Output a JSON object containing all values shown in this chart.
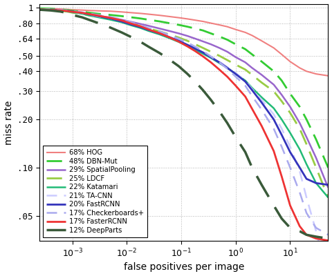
{
  "title": "",
  "xlabel": "false positives per image",
  "ylabel": "miss rate",
  "xlim": [
    0.00025,
    50
  ],
  "ylim": [
    0.035,
    1.05
  ],
  "yticks": [
    0.05,
    0.1,
    0.2,
    0.3,
    0.4,
    0.5,
    0.64,
    0.8,
    1.0
  ],
  "ytick_labels": [
    ".05",
    ".10",
    ".20",
    ".30",
    ".40",
    ".50",
    ".64",
    ".80",
    "1"
  ],
  "xticks": [
    0.001,
    0.01,
    0.1,
    1.0,
    10.0
  ],
  "xtick_labels": [
    "10⁻³",
    "10⁻²",
    "10⁻¹",
    "10⁰",
    "10¹"
  ],
  "background_color": "#ffffff",
  "grid_color": "#aaaaaa",
  "curves": [
    {
      "label": "68% HOG",
      "color": "#f08080",
      "linestyle": "-",
      "linewidth": 1.5,
      "x": [
        0.00025,
        0.0004,
        0.0006,
        0.0008,
        0.001,
        0.0015,
        0.002,
        0.003,
        0.005,
        0.008,
        0.012,
        0.018,
        0.025,
        0.04,
        0.06,
        0.09,
        0.13,
        0.18,
        0.25,
        0.35,
        0.5,
        0.7,
        1.0,
        1.5,
        2.0,
        3.0,
        5.0,
        7.0,
        10.0,
        15.0,
        20.0,
        30.0,
        50.0
      ],
      "y": [
        0.99,
        0.985,
        0.98,
        0.975,
        0.97,
        0.965,
        0.96,
        0.955,
        0.95,
        0.94,
        0.93,
        0.92,
        0.91,
        0.895,
        0.88,
        0.865,
        0.85,
        0.835,
        0.82,
        0.8,
        0.78,
        0.76,
        0.73,
        0.7,
        0.67,
        0.62,
        0.56,
        0.51,
        0.46,
        0.42,
        0.4,
        0.385,
        0.375
      ]
    },
    {
      "label": "48% DBN-Mut",
      "color": "#33cc33",
      "linestyle": "--",
      "linewidth": 2.0,
      "dash_pattern": [
        8,
        4
      ],
      "x": [
        0.00025,
        0.0004,
        0.0006,
        0.0008,
        0.001,
        0.0015,
        0.002,
        0.003,
        0.005,
        0.008,
        0.012,
        0.018,
        0.025,
        0.04,
        0.06,
        0.09,
        0.13,
        0.18,
        0.25,
        0.35,
        0.5,
        0.7,
        1.0,
        1.5,
        2.0,
        3.0,
        5.0,
        7.0,
        10.0,
        15.0,
        20.0,
        30.0,
        50.0
      ],
      "y": [
        0.99,
        0.985,
        0.975,
        0.965,
        0.955,
        0.945,
        0.93,
        0.915,
        0.9,
        0.885,
        0.87,
        0.855,
        0.84,
        0.82,
        0.8,
        0.78,
        0.76,
        0.74,
        0.72,
        0.69,
        0.66,
        0.63,
        0.59,
        0.55,
        0.51,
        0.46,
        0.4,
        0.35,
        0.29,
        0.24,
        0.2,
        0.15,
        0.1
      ]
    },
    {
      "label": "29% SpatialPooling",
      "color": "#9966cc",
      "linestyle": "-",
      "linewidth": 1.8,
      "x": [
        0.00025,
        0.0004,
        0.0006,
        0.0008,
        0.001,
        0.0015,
        0.002,
        0.003,
        0.005,
        0.008,
        0.012,
        0.018,
        0.025,
        0.04,
        0.06,
        0.09,
        0.13,
        0.18,
        0.25,
        0.35,
        0.5,
        0.7,
        1.0,
        1.5,
        2.0,
        3.0,
        5.0,
        7.0,
        10.0,
        15.0,
        20.0,
        30.0,
        50.0
      ],
      "y": [
        0.98,
        0.975,
        0.965,
        0.955,
        0.94,
        0.925,
        0.91,
        0.89,
        0.865,
        0.84,
        0.815,
        0.79,
        0.77,
        0.74,
        0.715,
        0.69,
        0.665,
        0.64,
        0.615,
        0.59,
        0.56,
        0.53,
        0.49,
        0.455,
        0.42,
        0.38,
        0.33,
        0.285,
        0.24,
        0.19,
        0.155,
        0.115,
        0.075
      ]
    },
    {
      "label": "25% LDCF",
      "color": "#99cc44",
      "linestyle": "--",
      "linewidth": 2.0,
      "dash_pattern": [
        8,
        4
      ],
      "x": [
        0.00025,
        0.0004,
        0.0006,
        0.0008,
        0.001,
        0.0015,
        0.002,
        0.003,
        0.005,
        0.008,
        0.012,
        0.018,
        0.025,
        0.04,
        0.06,
        0.09,
        0.13,
        0.18,
        0.25,
        0.35,
        0.5,
        0.7,
        1.0,
        1.5,
        2.0,
        3.0,
        5.0,
        7.0,
        10.0,
        15.0,
        20.0,
        30.0,
        50.0
      ],
      "y": [
        0.97,
        0.965,
        0.955,
        0.945,
        0.93,
        0.915,
        0.895,
        0.875,
        0.85,
        0.825,
        0.795,
        0.765,
        0.74,
        0.71,
        0.68,
        0.65,
        0.62,
        0.59,
        0.56,
        0.53,
        0.5,
        0.47,
        0.44,
        0.41,
        0.38,
        0.34,
        0.3,
        0.26,
        0.22,
        0.175,
        0.14,
        0.1,
        0.065
      ]
    },
    {
      "label": "22% Katamari",
      "color": "#22bb77",
      "linestyle": "-",
      "linewidth": 1.8,
      "x": [
        0.00025,
        0.0004,
        0.0006,
        0.0008,
        0.001,
        0.0015,
        0.002,
        0.003,
        0.005,
        0.008,
        0.012,
        0.018,
        0.025,
        0.04,
        0.06,
        0.09,
        0.13,
        0.18,
        0.25,
        0.35,
        0.5,
        0.7,
        1.0,
        1.5,
        2.0,
        3.0,
        5.0,
        7.0,
        10.0,
        15.0,
        20.0,
        30.0,
        50.0
      ],
      "y": [
        0.975,
        0.97,
        0.96,
        0.95,
        0.935,
        0.915,
        0.895,
        0.87,
        0.84,
        0.81,
        0.775,
        0.745,
        0.715,
        0.68,
        0.645,
        0.61,
        0.575,
        0.545,
        0.515,
        0.485,
        0.45,
        0.42,
        0.385,
        0.35,
        0.315,
        0.275,
        0.235,
        0.2,
        0.165,
        0.13,
        0.105,
        0.08,
        0.065
      ]
    },
    {
      "label": "21% TA-CNN",
      "color": "#ccccff",
      "linestyle": "--",
      "linewidth": 1.8,
      "dash_pattern": [
        6,
        4
      ],
      "x": [
        0.00025,
        0.0004,
        0.0006,
        0.0008,
        0.001,
        0.0015,
        0.002,
        0.003,
        0.005,
        0.008,
        0.012,
        0.018,
        0.025,
        0.04,
        0.06,
        0.09,
        0.13,
        0.18,
        0.25,
        0.35,
        0.5,
        0.7,
        1.0,
        1.5,
        2.0,
        3.0,
        5.0,
        7.0,
        10.0,
        15.0,
        20.0,
        30.0,
        50.0
      ],
      "y": [
        0.98,
        0.975,
        0.965,
        0.955,
        0.94,
        0.925,
        0.905,
        0.88,
        0.855,
        0.825,
        0.79,
        0.76,
        0.73,
        0.695,
        0.66,
        0.625,
        0.59,
        0.56,
        0.53,
        0.495,
        0.46,
        0.425,
        0.39,
        0.35,
        0.31,
        0.265,
        0.215,
        0.175,
        0.135,
        0.095,
        0.065,
        0.04,
        0.02
      ]
    },
    {
      "label": "20% FastRCNN",
      "color": "#3333bb",
      "linestyle": "-",
      "linewidth": 2.0,
      "x": [
        0.00025,
        0.0004,
        0.0006,
        0.0008,
        0.001,
        0.0015,
        0.002,
        0.003,
        0.005,
        0.008,
        0.012,
        0.018,
        0.025,
        0.04,
        0.06,
        0.09,
        0.13,
        0.18,
        0.25,
        0.35,
        0.5,
        0.7,
        1.0,
        1.5,
        2.0,
        3.0,
        5.0,
        7.0,
        10.0,
        15.0,
        20.0,
        30.0,
        50.0
      ],
      "y": [
        0.97,
        0.965,
        0.96,
        0.955,
        0.945,
        0.93,
        0.91,
        0.885,
        0.855,
        0.82,
        0.785,
        0.755,
        0.725,
        0.69,
        0.655,
        0.62,
        0.585,
        0.555,
        0.525,
        0.49,
        0.455,
        0.42,
        0.385,
        0.345,
        0.305,
        0.255,
        0.2,
        0.16,
        0.125,
        0.1,
        0.085,
        0.08,
        0.078
      ]
    },
    {
      "label": "17% Checkerboards+",
      "color": "#aaaaee",
      "linestyle": "--",
      "linewidth": 1.8,
      "dash_pattern": [
        6,
        4
      ],
      "x": [
        0.00025,
        0.0004,
        0.0006,
        0.0008,
        0.001,
        0.0015,
        0.002,
        0.003,
        0.005,
        0.008,
        0.012,
        0.018,
        0.025,
        0.04,
        0.06,
        0.09,
        0.13,
        0.18,
        0.25,
        0.35,
        0.5,
        0.7,
        1.0,
        1.5,
        2.0,
        3.0,
        5.0,
        7.0,
        10.0,
        15.0,
        20.0,
        30.0,
        50.0
      ],
      "y": [
        0.975,
        0.97,
        0.965,
        0.96,
        0.95,
        0.935,
        0.92,
        0.9,
        0.875,
        0.845,
        0.81,
        0.775,
        0.745,
        0.71,
        0.675,
        0.64,
        0.605,
        0.57,
        0.535,
        0.495,
        0.455,
        0.415,
        0.37,
        0.325,
        0.28,
        0.23,
        0.175,
        0.135,
        0.1,
        0.07,
        0.052,
        0.042,
        0.038
      ]
    },
    {
      "label": "17% FasterRCNN",
      "color": "#ee3333",
      "linestyle": "-",
      "linewidth": 2.0,
      "x": [
        0.00025,
        0.0004,
        0.0006,
        0.0008,
        0.001,
        0.0015,
        0.002,
        0.003,
        0.005,
        0.008,
        0.012,
        0.018,
        0.025,
        0.04,
        0.06,
        0.09,
        0.13,
        0.18,
        0.25,
        0.35,
        0.5,
        0.7,
        1.0,
        1.5,
        2.0,
        3.0,
        5.0,
        7.0,
        10.0,
        15.0,
        20.0,
        30.0,
        50.0
      ],
      "y": [
        0.975,
        0.968,
        0.96,
        0.952,
        0.942,
        0.928,
        0.912,
        0.89,
        0.863,
        0.832,
        0.795,
        0.763,
        0.73,
        0.692,
        0.653,
        0.613,
        0.572,
        0.535,
        0.496,
        0.455,
        0.41,
        0.37,
        0.325,
        0.278,
        0.233,
        0.182,
        0.127,
        0.088,
        0.058,
        0.043,
        0.038,
        0.036,
        0.035
      ]
    },
    {
      "label": "12% DeepParts",
      "color": "#3a5a3a",
      "linestyle": "--",
      "linewidth": 2.5,
      "dash_pattern": [
        10,
        5
      ],
      "x": [
        0.00025,
        0.0004,
        0.0006,
        0.0008,
        0.001,
        0.0015,
        0.002,
        0.003,
        0.005,
        0.008,
        0.012,
        0.018,
        0.025,
        0.04,
        0.06,
        0.09,
        0.13,
        0.18,
        0.25,
        0.35,
        0.5,
        0.7,
        1.0,
        1.5,
        2.0,
        3.0,
        5.0,
        7.0,
        10.0,
        15.0,
        20.0,
        30.0,
        50.0
      ],
      "y": [
        0.97,
        0.96,
        0.945,
        0.925,
        0.9,
        0.87,
        0.84,
        0.8,
        0.75,
        0.7,
        0.655,
        0.61,
        0.57,
        0.52,
        0.475,
        0.43,
        0.385,
        0.345,
        0.305,
        0.265,
        0.225,
        0.19,
        0.155,
        0.125,
        0.1,
        0.078,
        0.058,
        0.048,
        0.042,
        0.04,
        0.038,
        0.037,
        0.036
      ]
    }
  ]
}
